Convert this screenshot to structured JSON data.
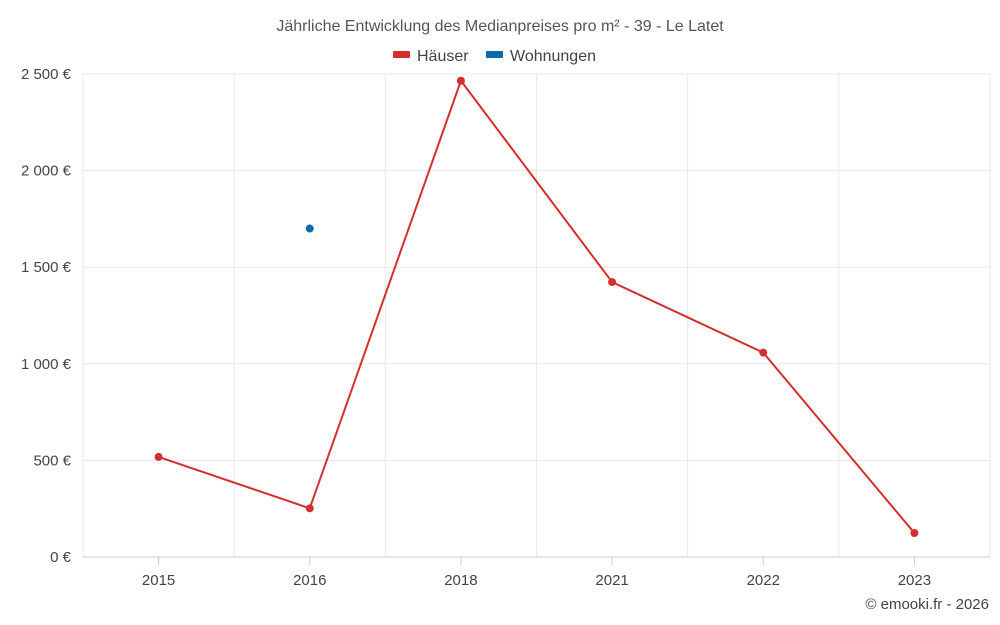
{
  "chart_data": {
    "type": "line",
    "title": "Jährliche Entwicklung des Medianpreises pro m² - 39 - Le Latet",
    "categories": [
      "2015",
      "2016",
      "2018",
      "2021",
      "2022",
      "2023"
    ],
    "series": [
      {
        "name": "Häuser",
        "color": "#d32f2f",
        "values": [
          518,
          252,
          2465,
          1423,
          1058,
          124
        ]
      },
      {
        "name": "Wohnungen",
        "color": "#0d6aa8",
        "values": [
          null,
          1700,
          null,
          null,
          null,
          null
        ]
      }
    ],
    "yticks": [
      0,
      500,
      1000,
      1500,
      2000,
      2500
    ],
    "ytick_labels": [
      "0 €",
      "500 €",
      "1 000 €",
      "1 500 €",
      "2 000 €",
      "2 500 €"
    ],
    "ylim": [
      0,
      2500
    ],
    "grid": true,
    "legend_position": "top-center",
    "xlabel": "",
    "ylabel": ""
  },
  "credit": "© emooki.fr - 2026"
}
